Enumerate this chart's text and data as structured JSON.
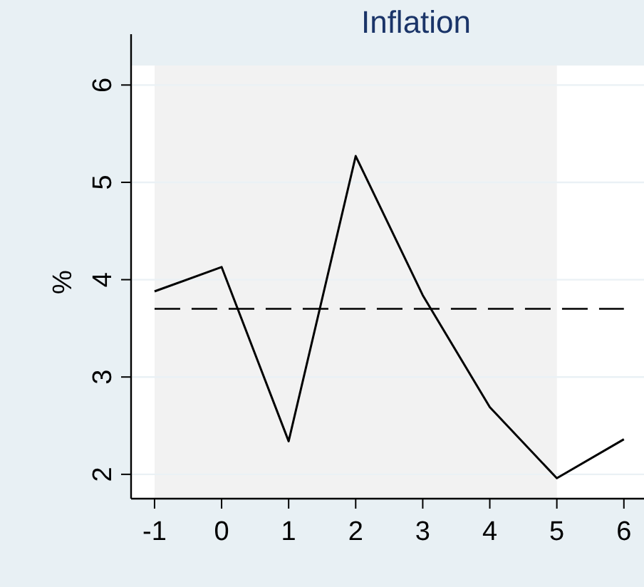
{
  "chart_data": {
    "type": "line",
    "title": "Inflation",
    "ylabel": "%",
    "x": [
      -1,
      0,
      1,
      2,
      3,
      4,
      5,
      6
    ],
    "series": [
      {
        "color": "#000000",
        "values": [
          3.88,
          4.13,
          2.34,
          5.27,
          3.84,
          2.69,
          1.96,
          2.36
        ]
      }
    ],
    "xlim": [
      -1.35,
      6.3
    ],
    "ylim": [
      1.75,
      6.2
    ],
    "xticks": [
      -1,
      0,
      1,
      2,
      3,
      4,
      5,
      6
    ],
    "yticks": [
      2,
      3,
      4,
      5,
      6
    ],
    "grid": "y",
    "marker": "none",
    "line_style": "solid",
    "ref_lines": [
      {
        "axis": "y",
        "value": 3.7,
        "label": null,
        "color": "#000000",
        "line_style": "dashed"
      }
    ],
    "bands": [
      {
        "axis": "x",
        "from": -1,
        "to": 5,
        "label": null,
        "color": "#f2f2f2"
      }
    ]
  }
}
